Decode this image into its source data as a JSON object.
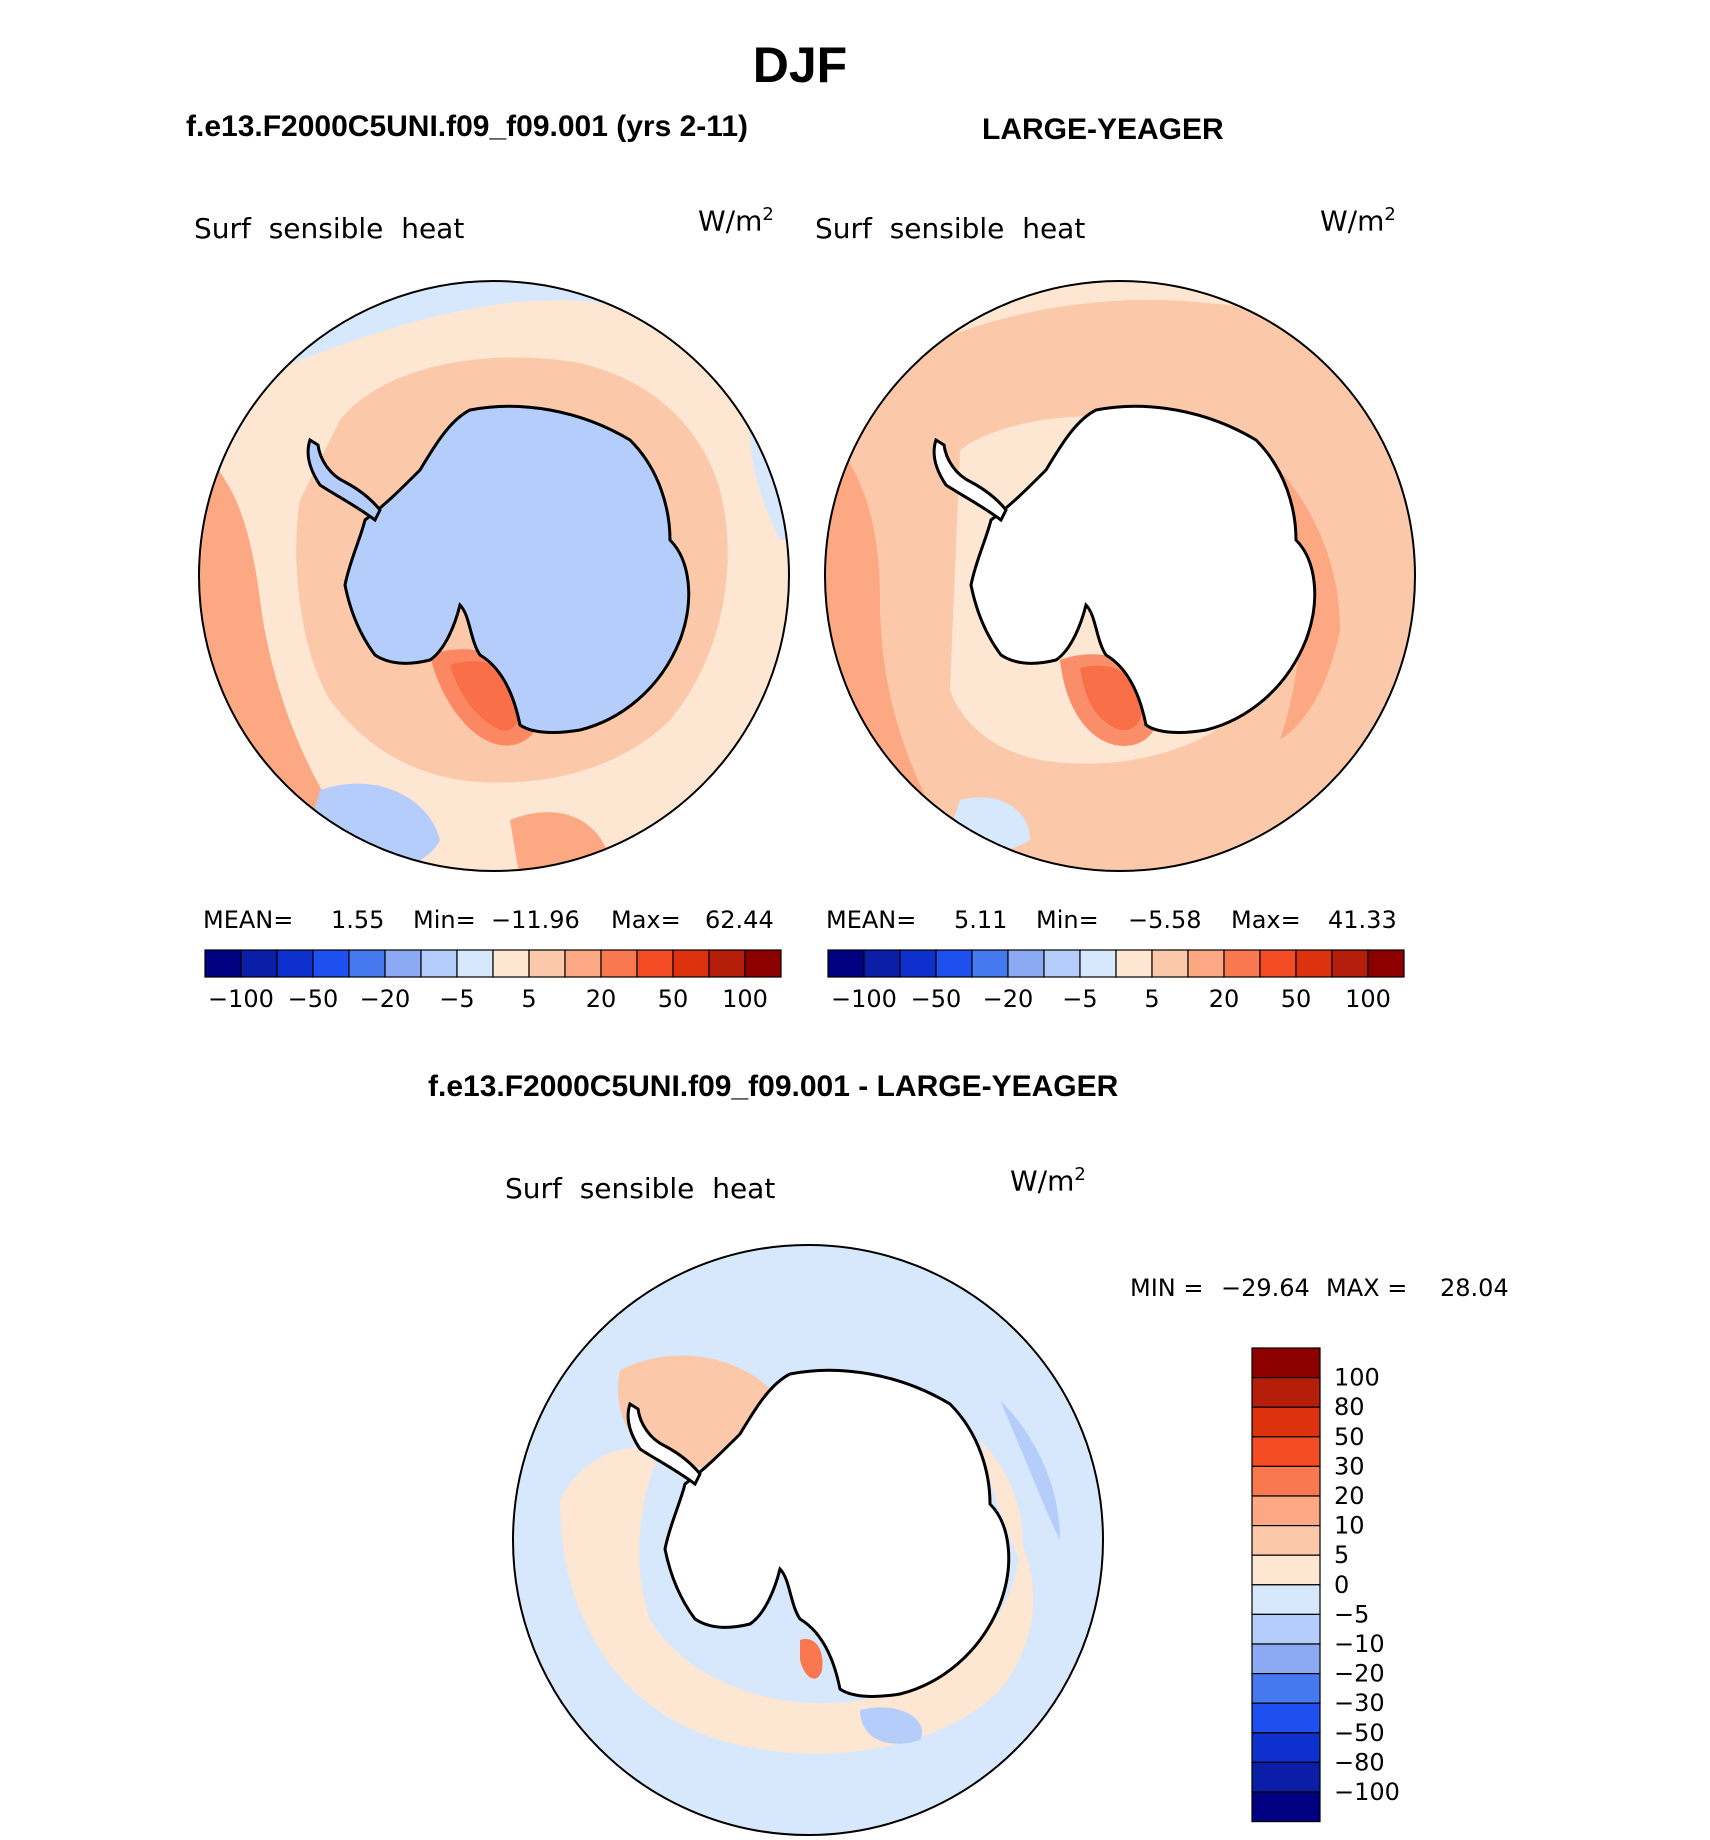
{
  "season_title": "DJF",
  "panels": {
    "left": {
      "case_name": "f.e13.F2000C5UNI.f09_f09.001 (yrs 2-11)",
      "variable": "Surf  sensible  heat",
      "units": "W/m",
      "units_power": "2",
      "mean_label": "MEAN=",
      "mean": "1.55",
      "min_label": "Min=",
      "min": "−11.96",
      "max_label": "Max=",
      "max": "62.44"
    },
    "right": {
      "case_name": "LARGE-YEAGER",
      "variable": "Surf  sensible  heat",
      "units": "W/m",
      "units_power": "2",
      "mean_label": "MEAN=",
      "mean": "5.11",
      "min_label": "Min=",
      "min": "−5.58",
      "max_label": "Max=",
      "max": "41.33"
    },
    "diff": {
      "case_name": "f.e13.F2000C5UNI.f09_f09.001 - LARGE-YEAGER",
      "variable": "Surf  sensible  heat",
      "units": "W/m",
      "units_power": "2",
      "min_label": "MIN =",
      "min": "−29.64",
      "max_label": "MAX =",
      "max": "28.04"
    }
  },
  "horizontal_colorbar": {
    "colors": [
      "#000080",
      "#0a1ea8",
      "#0e30cc",
      "#1e50f0",
      "#4678f0",
      "#8caaf4",
      "#b4cdfa",
      "#d8e8fc",
      "#fde6d2",
      "#fcc8aa",
      "#fca882",
      "#fa7850",
      "#f44c24",
      "#dc320e",
      "#b41e0a",
      "#8c0000"
    ],
    "labels": [
      "−100",
      "−50",
      "−20",
      "−5",
      "5",
      "20",
      "50",
      "100"
    ]
  },
  "vertical_colorbar": {
    "colors": [
      "#8c0000",
      "#b41e0a",
      "#dc320e",
      "#f44c24",
      "#fa7850",
      "#fca882",
      "#fcc8aa",
      "#fde6d2",
      "#d8e8fc",
      "#b4cdfa",
      "#8caaf4",
      "#4678f0",
      "#1e50f0",
      "#0e30cc",
      "#0a1ea8",
      "#000080"
    ],
    "labels": [
      "100",
      "80",
      "50",
      "30",
      "20",
      "10",
      "5",
      "0",
      "−5",
      "−10",
      "−20",
      "−30",
      "−50",
      "−80",
      "−100"
    ]
  },
  "map_fill_colors": {
    "ocean_pos_light": "#fde6d2",
    "ocean_pos_mid": "#fcc8aa",
    "ocean_pos_strong": "#fca882",
    "ocean_pos_hot": "#f44c24",
    "neg_light": "#d8e8fc",
    "neg_mid": "#b4cdfa",
    "land_blank": "#ffffff"
  }
}
